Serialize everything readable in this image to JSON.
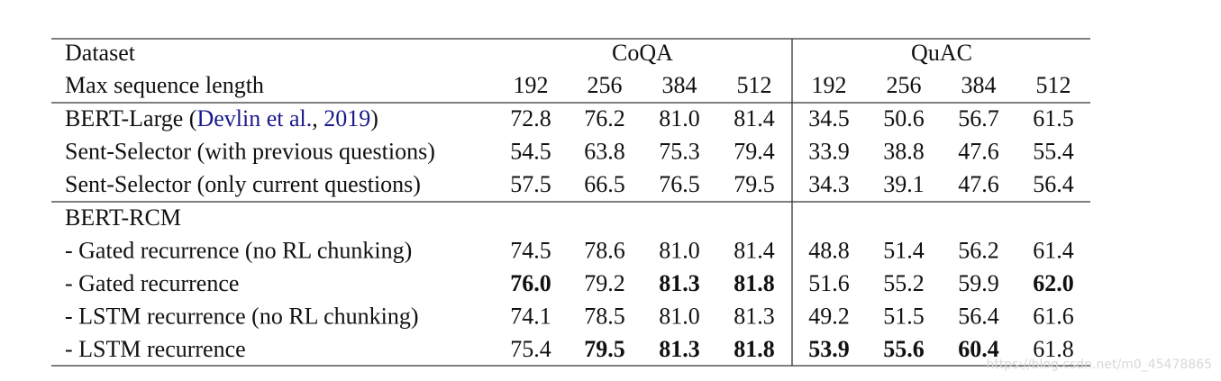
{
  "table": {
    "header": {
      "dataset": "Dataset",
      "groups": [
        "CoQA",
        "QuAC"
      ],
      "length_label": "Max sequence length",
      "lengths": [
        "192",
        "256",
        "384",
        "512",
        "192",
        "256",
        "384",
        "512"
      ]
    },
    "sections": [
      {
        "rows": [
          {
            "label": [
              {
                "text": "BERT-Large ("
              },
              {
                "text": "Devlin et al.",
                "cite": true
              },
              {
                "text": ", "
              },
              {
                "text": "2019",
                "cite": true
              },
              {
                "text": ")"
              }
            ],
            "values": [
              "72.8",
              "76.2",
              "81.0",
              "81.4",
              "34.5",
              "50.6",
              "56.7",
              "61.5"
            ],
            "bold": []
          },
          {
            "label": [
              {
                "text": "Sent-Selector (with previous questions)"
              }
            ],
            "values": [
              "54.5",
              "63.8",
              "75.3",
              "79.4",
              "33.9",
              "38.8",
              "47.6",
              "55.4"
            ],
            "bold": []
          },
          {
            "label": [
              {
                "text": "Sent-Selector (only current questions)"
              }
            ],
            "values": [
              "57.5",
              "66.5",
              "76.5",
              "79.5",
              "34.3",
              "39.1",
              "47.6",
              "56.4"
            ],
            "bold": []
          }
        ]
      },
      {
        "title": "BERT-RCM",
        "rows": [
          {
            "label": [
              {
                "text": "- Gated recurrence (no RL chunking)"
              }
            ],
            "values": [
              "74.5",
              "78.6",
              "81.0",
              "81.4",
              "48.8",
              "51.4",
              "56.2",
              "61.4"
            ],
            "bold": []
          },
          {
            "label": [
              {
                "text": "- Gated recurrence"
              }
            ],
            "values": [
              "76.0",
              "79.2",
              "81.3",
              "81.8",
              "51.6",
              "55.2",
              "59.9",
              "62.0"
            ],
            "bold": [
              0,
              2,
              3,
              7
            ]
          },
          {
            "label": [
              {
                "text": "- LSTM recurrence (no RL chunking)"
              }
            ],
            "values": [
              "74.1",
              "78.5",
              "81.0",
              "81.3",
              "49.2",
              "51.5",
              "56.4",
              "61.6"
            ],
            "bold": []
          },
          {
            "label": [
              {
                "text": "- LSTM recurrence"
              }
            ],
            "values": [
              "75.4",
              "79.5",
              "81.3",
              "81.8",
              "53.9",
              "55.6",
              "60.4",
              "61.8"
            ],
            "bold": [
              1,
              2,
              3,
              4,
              5,
              6
            ]
          }
        ]
      }
    ],
    "cite_color": "#1a1a8c",
    "watermark": "https://blog.csdn.net/m0_45478865"
  }
}
